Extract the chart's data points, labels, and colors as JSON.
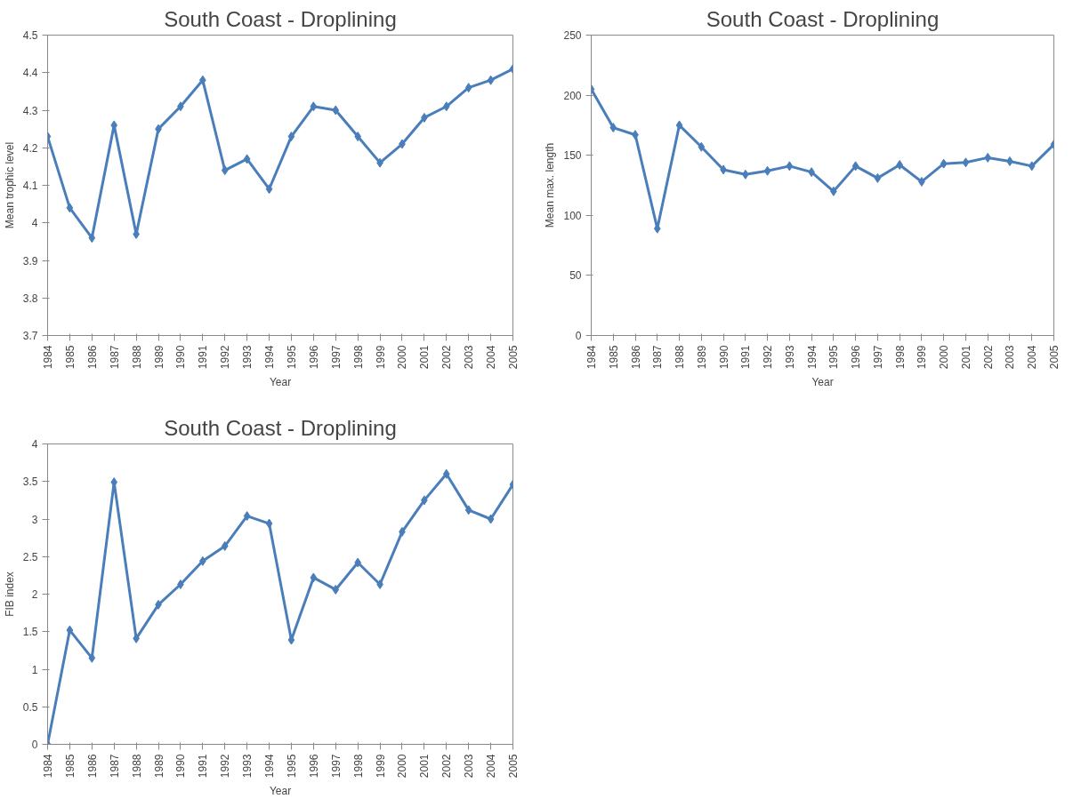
{
  "chart_data": [
    {
      "type": "line",
      "title": "South Coast - Droplining",
      "xlabel": "Year",
      "ylabel": "Mean trophic level",
      "categories": [
        "1984",
        "1985",
        "1986",
        "1987",
        "1988",
        "1989",
        "1990",
        "1991",
        "1992",
        "1993",
        "1994",
        "1995",
        "1996",
        "1997",
        "1998",
        "1999",
        "2000",
        "2001",
        "2002",
        "2003",
        "2004",
        "2005"
      ],
      "values": [
        4.23,
        4.04,
        3.96,
        4.26,
        3.97,
        4.25,
        4.31,
        4.38,
        4.14,
        4.17,
        4.09,
        4.23,
        4.31,
        4.3,
        4.23,
        4.16,
        4.21,
        4.28,
        4.31,
        4.36,
        4.38,
        4.41
      ],
      "color": "#4a7ebb",
      "marker": "diamond",
      "ylim": [
        3.7,
        4.5
      ],
      "yticks": [
        3.7,
        3.8,
        3.9,
        4,
        4.1,
        4.2,
        4.3,
        4.4,
        4.5
      ]
    },
    {
      "type": "line",
      "title": "South Coast - Droplining",
      "xlabel": "Year",
      "ylabel": "Mean max. length",
      "categories": [
        "1984",
        "1985",
        "1986",
        "1987",
        "1988",
        "1989",
        "1990",
        "1991",
        "1992",
        "1993",
        "1994",
        "1995",
        "1996",
        "1997",
        "1998",
        "1999",
        "2000",
        "2001",
        "2002",
        "2003",
        "2004",
        "2005"
      ],
      "values": [
        205,
        173,
        167,
        89,
        175,
        157,
        138,
        134,
        137,
        141,
        136,
        120,
        141,
        131,
        142,
        128,
        143,
        144,
        148,
        145,
        141,
        159
      ],
      "color": "#4a7ebb",
      "marker": "diamond",
      "ylim": [
        0,
        250
      ],
      "yticks": [
        0,
        50,
        100,
        150,
        200,
        250
      ]
    },
    {
      "type": "line",
      "title": "South Coast - Droplining",
      "xlabel": "Year",
      "ylabel": "FIB index",
      "categories": [
        "1984",
        "1985",
        "1986",
        "1987",
        "1988",
        "1989",
        "1990",
        "1991",
        "1992",
        "1993",
        "1994",
        "1995",
        "1996",
        "1997",
        "1998",
        "1999",
        "2000",
        "2001",
        "2002",
        "2003",
        "2004",
        "2005"
      ],
      "values": [
        0,
        1.52,
        1.15,
        3.49,
        1.41,
        1.86,
        2.13,
        2.44,
        2.64,
        3.04,
        2.94,
        1.39,
        2.22,
        2.06,
        2.42,
        2.13,
        2.83,
        3.25,
        3.6,
        3.12,
        3.0,
        3.46
      ],
      "color": "#4a7ebb",
      "marker": "diamond",
      "ylim": [
        0,
        4
      ],
      "yticks": [
        0,
        0.5,
        1,
        1.5,
        2,
        2.5,
        3,
        3.5,
        4
      ]
    }
  ]
}
